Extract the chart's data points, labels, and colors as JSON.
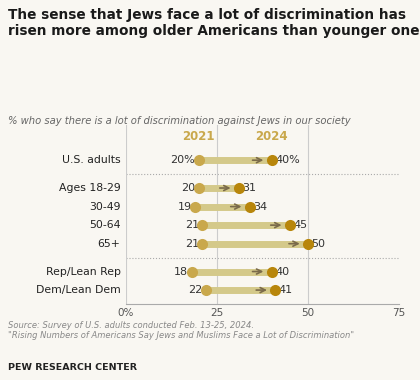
{
  "title": "The sense that Jews face a lot of discrimination has\nrisen more among older Americans than younger ones",
  "subtitle": "% who say there is a lot of discrimination against Jews in our society",
  "categories": [
    "U.S. adults",
    "Ages 18-29",
    "30-49",
    "50-64",
    "65+",
    "Rep/Lean Rep",
    "Dem/Lean Dem"
  ],
  "values_2021": [
    20,
    20,
    19,
    21,
    21,
    18,
    22
  ],
  "values_2024": [
    40,
    31,
    34,
    45,
    50,
    40,
    41
  ],
  "show_pct_sign": [
    true,
    false,
    false,
    false,
    false,
    false,
    false
  ],
  "dot_color_2021": "#C9A84C",
  "dot_color_2024": "#B8860B",
  "line_color": "#D4C98A",
  "arrow_color": "#7a6a4a",
  "label_2021": "2021",
  "label_2024": "2024",
  "year_label_color": "#C9A84C",
  "xlim": [
    0,
    75
  ],
  "xticks": [
    0,
    25,
    50,
    75
  ],
  "xticklabels": [
    "0%",
    "25",
    "50",
    "75"
  ],
  "source_text": "Source: Survey of U.S. adults conducted Feb. 13-25, 2024.\n\"Rising Numbers of Americans Say Jews and Muslims Face a Lot of Discrimination\"",
  "footer": "PEW RESEARCH CENTER",
  "bg_color": "#f9f7f2",
  "title_color": "#1a1a1a",
  "subtitle_color": "#666666",
  "vline_color": "#cccccc",
  "sep_color": "#aaaaaa",
  "spine_color": "#aaaaaa"
}
